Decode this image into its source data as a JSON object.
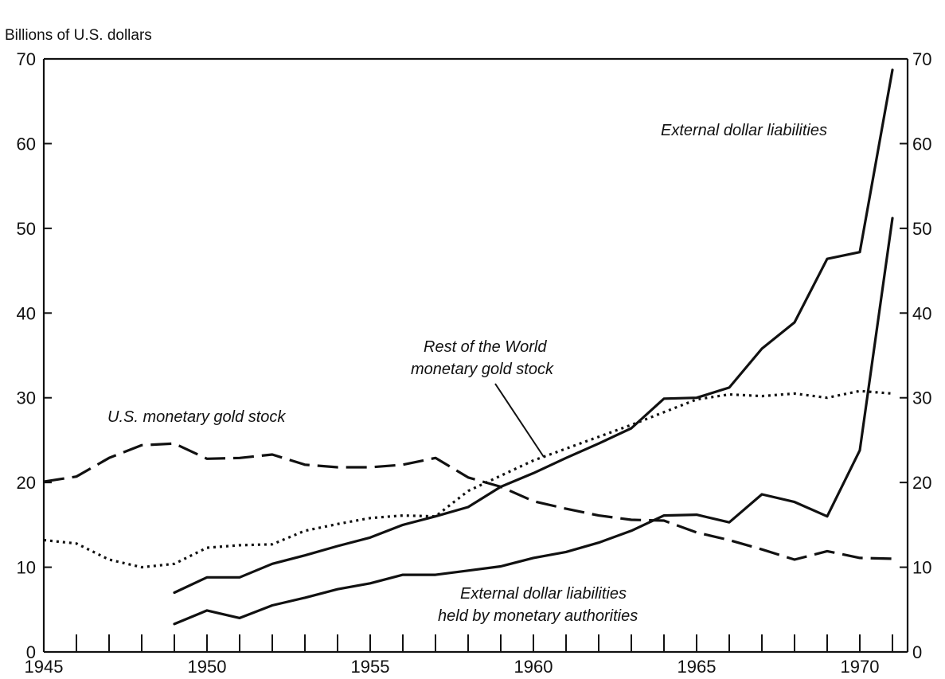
{
  "chart_data": {
    "type": "line",
    "ylabel": "Billions of U.S. dollars",
    "xlim": [
      1945,
      1971.5
    ],
    "ylim": [
      0,
      70
    ],
    "x_ticks": [
      1945,
      1950,
      1955,
      1960,
      1965,
      1970
    ],
    "y_ticks": [
      0,
      10,
      20,
      30,
      40,
      50,
      60,
      70
    ],
    "grid": false,
    "series": [
      {
        "name": "U.S. monetary gold stock",
        "style": "dashed",
        "x": [
          1945,
          1946,
          1947,
          1948,
          1949,
          1950,
          1951,
          1952,
          1953,
          1954,
          1955,
          1956,
          1957,
          1958,
          1959,
          1960,
          1961,
          1962,
          1963,
          1964,
          1965,
          1966,
          1967,
          1968,
          1969,
          1970,
          1971
        ],
        "y": [
          20.1,
          20.7,
          22.9,
          24.4,
          24.6,
          22.8,
          22.9,
          23.3,
          22.1,
          21.8,
          21.8,
          22.1,
          22.9,
          20.6,
          19.5,
          17.8,
          16.9,
          16.1,
          15.6,
          15.5,
          14.1,
          13.2,
          12.1,
          10.9,
          11.9,
          11.1,
          11.0
        ]
      },
      {
        "name": "Rest of the World monetary gold stock",
        "style": "dotted",
        "x": [
          1945,
          1946,
          1947,
          1948,
          1949,
          1950,
          1951,
          1952,
          1953,
          1954,
          1955,
          1956,
          1957,
          1958,
          1959,
          1960,
          1961,
          1962,
          1963,
          1964,
          1965,
          1966,
          1967,
          1968,
          1969,
          1970,
          1971
        ],
        "y": [
          13.2,
          12.8,
          10.9,
          10.0,
          10.4,
          12.3,
          12.6,
          12.7,
          14.3,
          15.1,
          15.8,
          16.1,
          16.0,
          19.0,
          20.8,
          22.6,
          24.0,
          25.4,
          26.8,
          28.3,
          29.8,
          30.4,
          30.2,
          30.5,
          30.0,
          30.8,
          30.5
        ]
      },
      {
        "name": "External dollar liabilities",
        "style": "solid",
        "x": [
          1949,
          1950,
          1951,
          1952,
          1953,
          1954,
          1955,
          1956,
          1957,
          1958,
          1959,
          1960,
          1961,
          1962,
          1963,
          1964,
          1965,
          1966,
          1967,
          1968,
          1969,
          1970,
          1971
        ],
        "y": [
          7.0,
          8.8,
          8.8,
          10.4,
          11.4,
          12.5,
          13.5,
          15.0,
          16.0,
          17.1,
          19.5,
          21.1,
          22.9,
          24.6,
          26.4,
          29.9,
          30.0,
          31.2,
          35.8,
          38.9,
          46.4,
          47.2,
          68.7
        ]
      },
      {
        "name": "External dollar liabilities held by monetary authorities",
        "style": "solid",
        "x": [
          1949,
          1950,
          1951,
          1952,
          1953,
          1954,
          1955,
          1956,
          1957,
          1958,
          1959,
          1960,
          1961,
          1962,
          1963,
          1964,
          1965,
          1966,
          1967,
          1968,
          1969,
          1970,
          1971
        ],
        "y": [
          3.3,
          4.9,
          4.0,
          5.5,
          6.4,
          7.4,
          8.1,
          9.1,
          9.1,
          9.6,
          10.1,
          11.1,
          11.8,
          12.9,
          14.3,
          16.1,
          16.2,
          15.3,
          18.6,
          17.7,
          16.0,
          23.8,
          51.2
        ]
      }
    ],
    "annotations": [
      "External dollar liabilities",
      "Rest of the World",
      "monetary gold stock",
      "U.S. monetary gold stock",
      "External dollar liabilities",
      "held by monetary authorities"
    ]
  }
}
